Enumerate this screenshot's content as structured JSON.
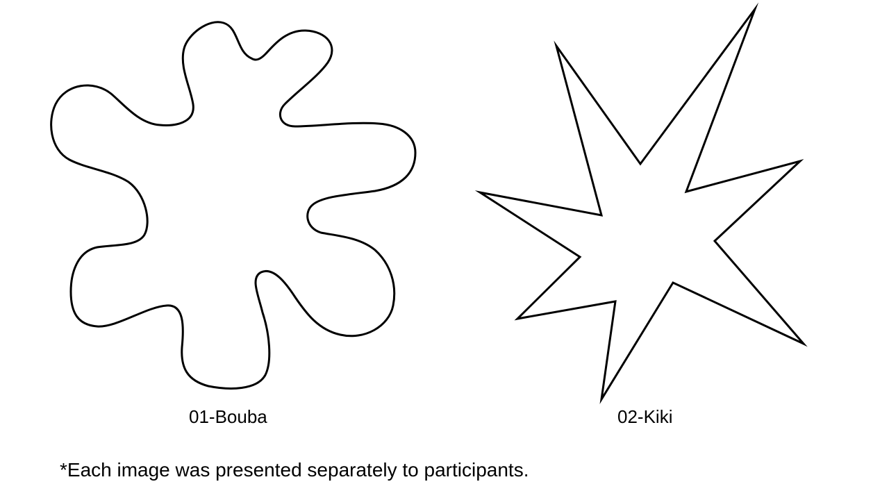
{
  "shapes": [
    {
      "id": "bouba",
      "label": "01-Bouba",
      "style": "rounded"
    },
    {
      "id": "kiki",
      "label": "02-Kiki",
      "style": "spiky"
    }
  ],
  "footnote": "*Each image was presented separately to participants.",
  "colors": {
    "background": "#ffffff",
    "stroke": "#000000"
  }
}
